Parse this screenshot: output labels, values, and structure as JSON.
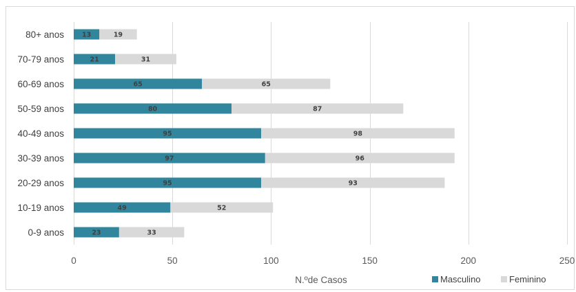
{
  "colors": {
    "masculino": "#31859c",
    "feminino": "#d9d9d9",
    "grid": "#d9d9d9",
    "frame": "#d9d9d9"
  },
  "chart_data": {
    "type": "bar",
    "orientation": "horizontal",
    "stacked": true,
    "categories": [
      "80+ anos",
      "70-79 anos",
      "60-69 anos",
      "50-59 anos",
      "40-49 anos",
      "30-39 anos",
      "20-29 anos",
      "10-19 anos",
      "0-9 anos"
    ],
    "series": [
      {
        "name": "Masculino",
        "values": [
          13,
          21,
          65,
          80,
          95,
          97,
          95,
          49,
          23
        ]
      },
      {
        "name": "Feminino",
        "values": [
          19,
          31,
          65,
          87,
          98,
          96,
          93,
          52,
          33
        ]
      }
    ],
    "xlabel": "N.ºde Casos",
    "ylabel": "",
    "xlim": [
      0,
      250
    ],
    "xticks": [
      0,
      50,
      100,
      150,
      200,
      250
    ],
    "grid": "vertical",
    "legend_position": "bottom-right",
    "data_labels": true
  }
}
